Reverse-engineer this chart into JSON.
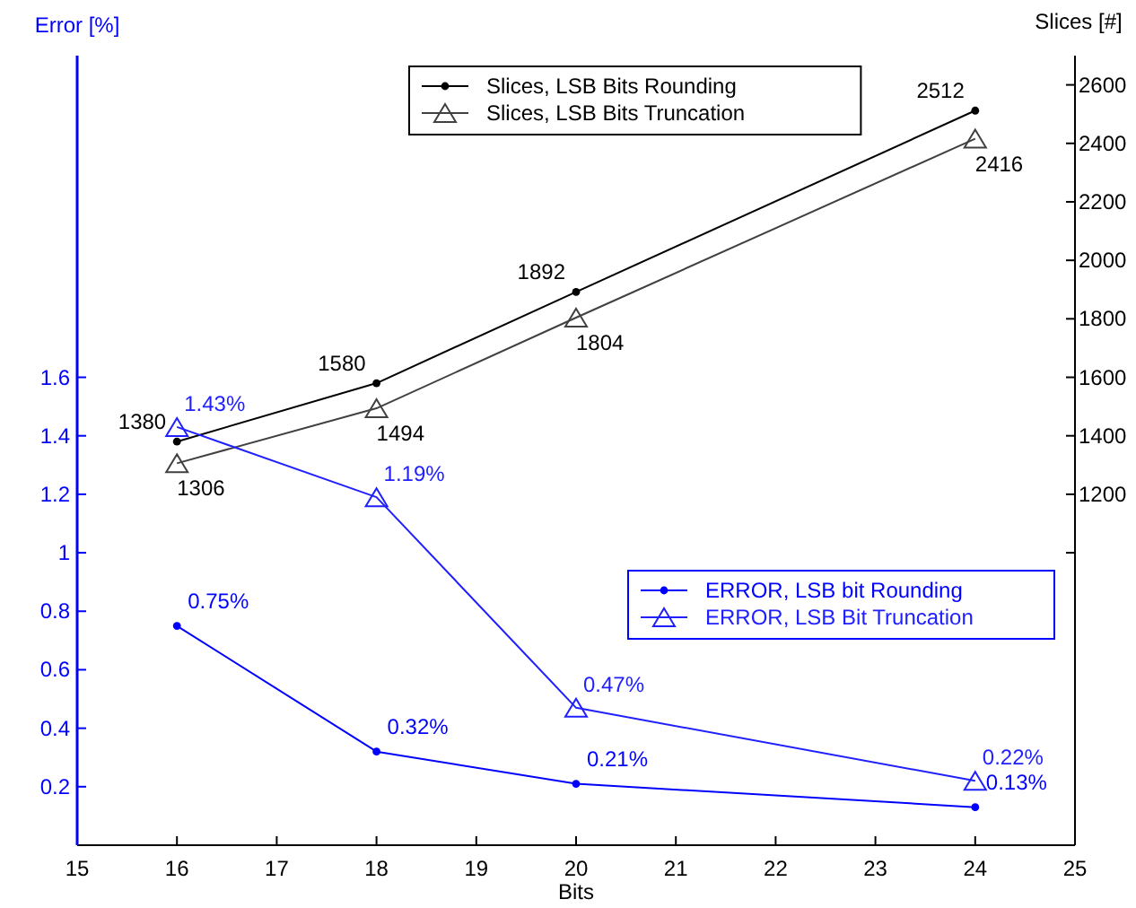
{
  "chart_data": {
    "type": "line",
    "xlabel": "Bits",
    "ylabel": "Error [%]",
    "y2label": "Slices [#]",
    "x": [
      16,
      18,
      20,
      24
    ],
    "xlim": [
      15,
      25
    ],
    "xticks": [
      15,
      16,
      17,
      18,
      19,
      20,
      21,
      22,
      23,
      24,
      25
    ],
    "ylim": [
      0,
      2.7
    ],
    "yticks": [
      0.2,
      0.4,
      0.6,
      0.8,
      1,
      1.2,
      1.4,
      1.6
    ],
    "y2lim": [
      0,
      2700
    ],
    "y2ticks": [
      {
        "value": 1000,
        "label": null
      },
      1200,
      1400,
      1600,
      1800,
      2000,
      2200,
      2400,
      2600
    ],
    "grid": false,
    "legend": "top",
    "series": [
      {
        "name": "Slices, LSB Bits Rounding",
        "color": "#000000",
        "axis": "y2",
        "marker": "circle",
        "values": [
          1380,
          1580,
          1892,
          2512
        ],
        "value_labels": [
          "1380",
          "1580",
          "1892",
          "2512"
        ]
      },
      {
        "name": "Slices, LSB Bits Truncation",
        "color": "#404040",
        "axis": "y2",
        "marker": "triangle",
        "values": [
          1306,
          1494,
          1804,
          2416
        ],
        "value_labels": [
          "1306",
          "1494",
          "1804",
          "2416"
        ]
      },
      {
        "name": "ERROR, LSB bit Rounding",
        "color": "#0000ff",
        "axis": "y",
        "marker": "circle",
        "values": [
          0.75,
          0.32,
          0.21,
          0.13
        ],
        "value_labels": [
          "0.75%",
          "0.32%",
          "0.21%",
          "0.13%"
        ]
      },
      {
        "name": "ERROR, LSB Bit Truncation",
        "color": "#2020ff",
        "axis": "y",
        "marker": "triangle",
        "values": [
          1.43,
          1.19,
          0.47,
          0.22
        ],
        "value_labels": [
          "1.43%",
          "1.19%",
          "0.47%",
          "0.22%"
        ]
      }
    ]
  }
}
